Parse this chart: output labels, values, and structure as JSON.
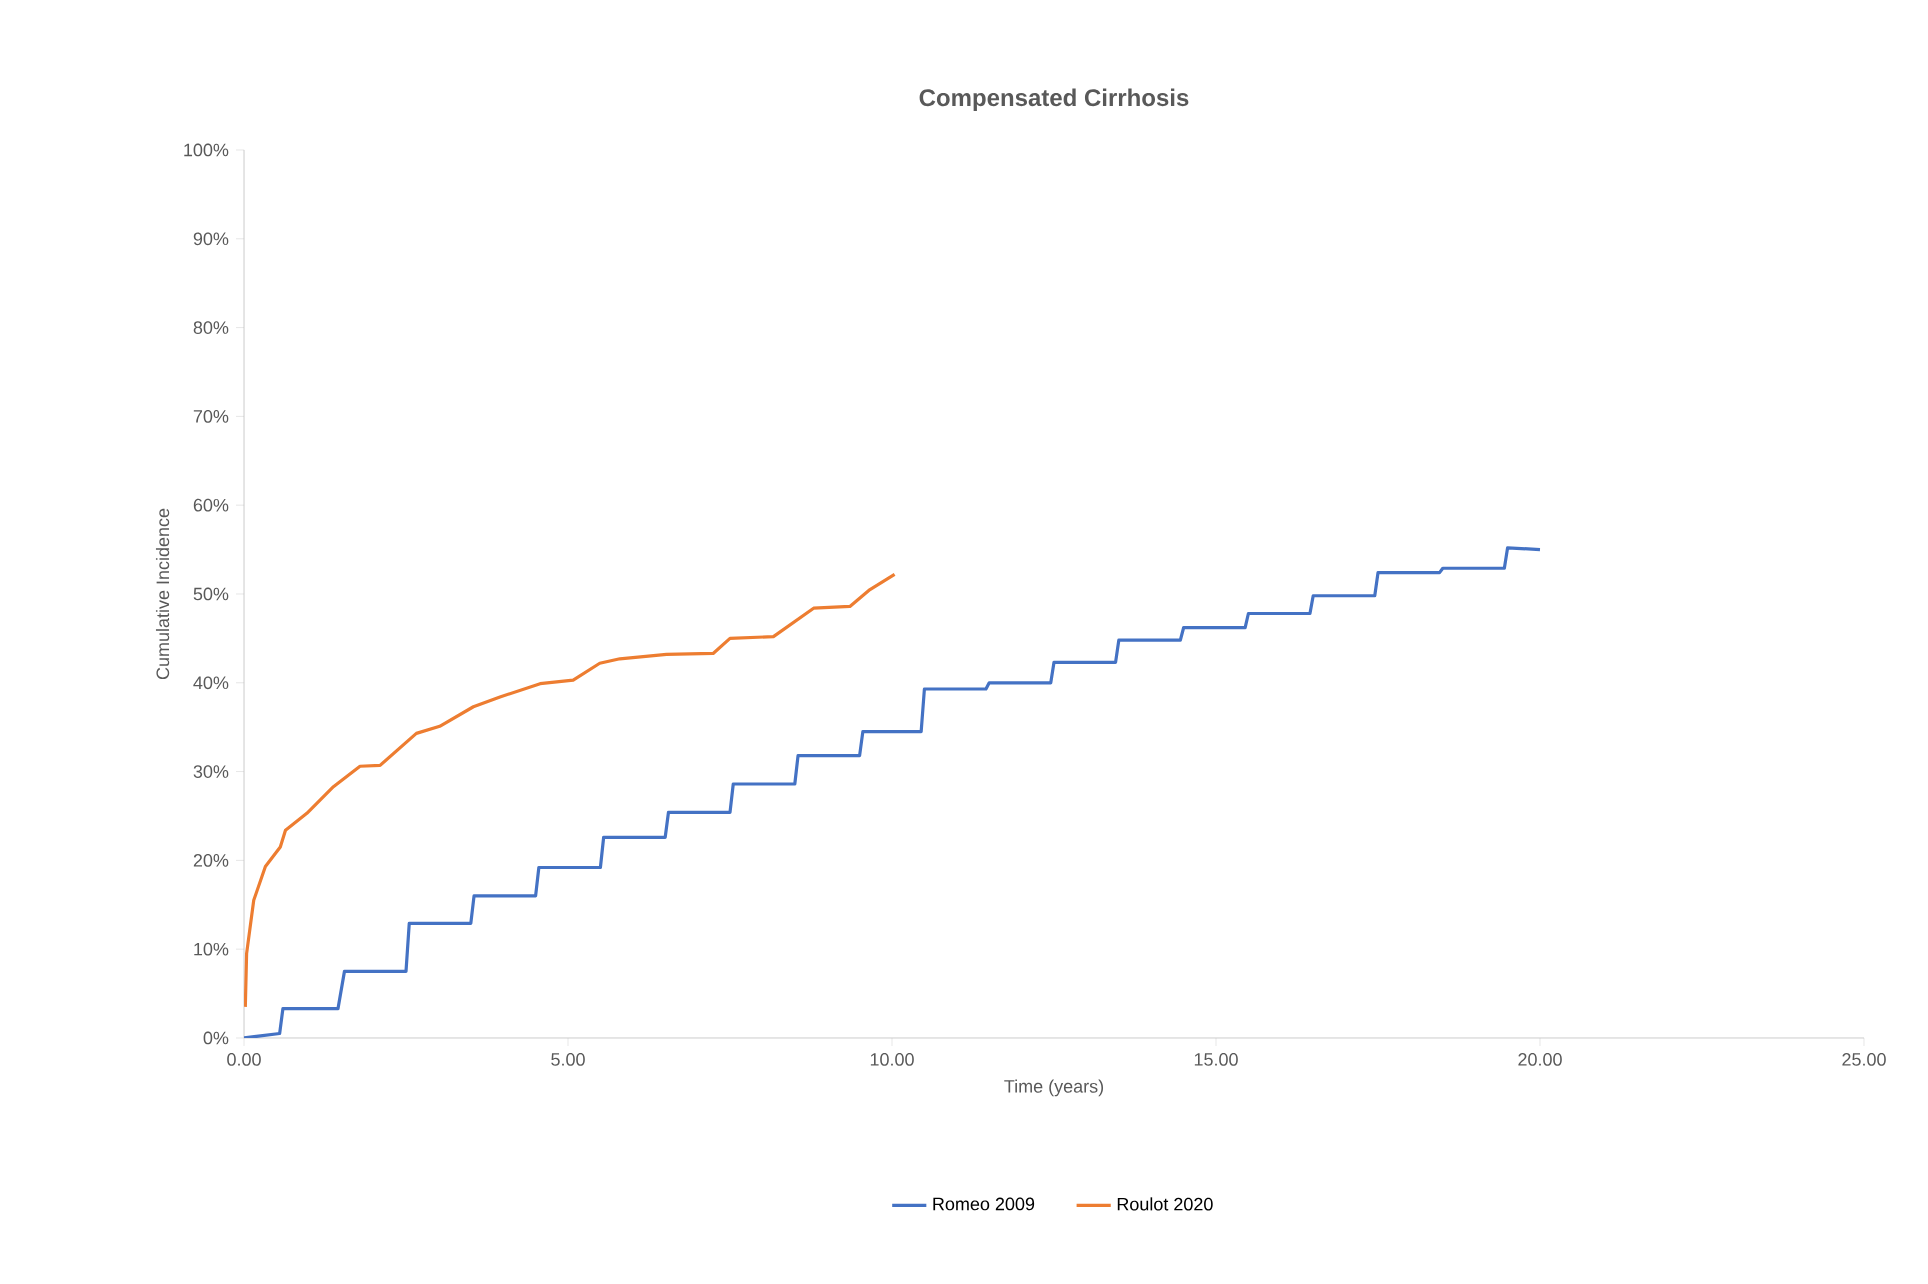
{
  "chart_data": {
    "type": "line",
    "title": "Compensated Cirrhosis",
    "xlabel": "Time (years)",
    "ylabel": "Cumulative  Incidence",
    "xlim": [
      0,
      25
    ],
    "ylim": [
      0,
      100
    ],
    "xticks": [
      {
        "value": 0,
        "label": "0.00"
      },
      {
        "value": 5,
        "label": "5.00"
      },
      {
        "value": 10,
        "label": "10.00"
      },
      {
        "value": 15,
        "label": "15.00"
      },
      {
        "value": 20,
        "label": "20.00"
      },
      {
        "value": 25,
        "label": "25.00"
      }
    ],
    "yticks": [
      {
        "value": 0,
        "label": "0%"
      },
      {
        "value": 10,
        "label": "10%"
      },
      {
        "value": 20,
        "label": "20%"
      },
      {
        "value": 30,
        "label": "30%"
      },
      {
        "value": 40,
        "label": "40%"
      },
      {
        "value": 50,
        "label": "50%"
      },
      {
        "value": 60,
        "label": "60%"
      },
      {
        "value": 70,
        "label": "70%"
      },
      {
        "value": 80,
        "label": "80%"
      },
      {
        "value": 90,
        "label": "90%"
      },
      {
        "value": 100,
        "label": "100%"
      }
    ],
    "grid": false,
    "legend": "bottom",
    "marker": "none",
    "line_style": "solid",
    "series": [
      {
        "name": "Romeo 2009",
        "color": "#4472c4",
        "x": [
          0,
          0.55,
          0.6,
          1.45,
          1.55,
          2.5,
          2.55,
          3.5,
          3.55,
          4.5,
          4.55,
          5.5,
          5.55,
          6.5,
          6.55,
          7.5,
          7.55,
          8.5,
          8.55,
          9.5,
          9.55,
          10.45,
          10.5,
          11.45,
          11.5,
          12.45,
          12.5,
          13.45,
          13.5,
          14.45,
          14.5,
          15.45,
          15.5,
          16.45,
          16.5,
          17.45,
          17.5,
          18.45,
          18.5,
          19.45,
          19.5,
          20
        ],
        "values": [
          0,
          0.5,
          3.3,
          3.3,
          7.5,
          7.5,
          12.9,
          12.9,
          16,
          16,
          19.2,
          19.2,
          22.6,
          22.6,
          25.4,
          25.4,
          28.6,
          28.6,
          31.8,
          31.8,
          34.5,
          34.5,
          39.3,
          39.3,
          40,
          40,
          42.3,
          42.3,
          44.8,
          44.8,
          46.2,
          46.2,
          47.8,
          47.8,
          49.8,
          49.8,
          52.4,
          52.4,
          52.9,
          52.9,
          55.2,
          55
        ]
      },
      {
        "name": "Roulot 2020",
        "color": "#ed7d31",
        "x": [
          0.02,
          0.04,
          0.15,
          0.33,
          0.56,
          0.64,
          0.97,
          1.38,
          1.79,
          2.1,
          2.66,
          3.02,
          3.54,
          3.95,
          4.57,
          5.08,
          5.49,
          5.8,
          6.52,
          7.24,
          7.5,
          8.17,
          8.79,
          9.35,
          9.66,
          10.04
        ],
        "values": [
          3.5,
          9.5,
          15.5,
          19.3,
          21.5,
          23.4,
          25.3,
          28.3,
          30.6,
          30.7,
          34.3,
          35.1,
          37.3,
          38.4,
          39.9,
          40.3,
          42.2,
          42.7,
          43.2,
          43.3,
          45,
          45.2,
          48.4,
          48.6,
          50.5,
          52.2
        ]
      }
    ]
  }
}
